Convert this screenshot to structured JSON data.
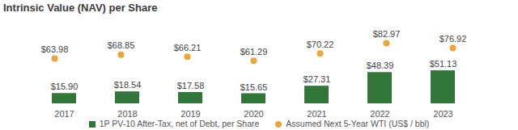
{
  "chart_data": {
    "type": "bar",
    "title": "Intrinsic Value (NAV) per Share",
    "categories": [
      "2017",
      "2018",
      "2019",
      "2020",
      "2021",
      "2022",
      "2023"
    ],
    "series": [
      {
        "name": "1P PV-10 After-Tax, net of Debt, per Share",
        "type": "bar",
        "color": "#33763a",
        "values": [
          15.9,
          18.54,
          17.58,
          15.65,
          27.31,
          48.39,
          51.13
        ],
        "value_labels": [
          "$15.90",
          "$18.54",
          "$17.58",
          "$15.65",
          "$27.31",
          "$48.39",
          "$51.13"
        ]
      },
      {
        "name": "Assumed Next 5-Year WTI (US$ / bbl)",
        "type": "scatter",
        "marker": "circle",
        "axis": "y2",
        "color": "#eba53a",
        "values": [
          63.98,
          68.85,
          66.21,
          61.29,
          70.22,
          82.97,
          76.92
        ],
        "value_labels": [
          "$63.98",
          "$68.85",
          "$66.21",
          "$61.29",
          "$70.22",
          "$82.97",
          "$76.92"
        ]
      }
    ],
    "ylim": [
      0,
      125
    ],
    "y2lim": [
      8,
      108
    ],
    "data_labels": true,
    "tick_labels": "x",
    "legend": "bottom",
    "grid": false
  }
}
